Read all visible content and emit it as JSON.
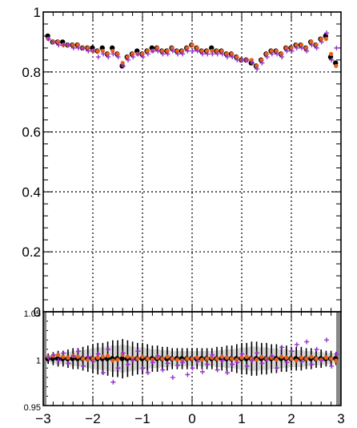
{
  "chart_data": [
    {
      "type": "scatter",
      "title": "",
      "xlabel": "",
      "ylabel": "",
      "xlim": [
        -3,
        3
      ],
      "ylim": [
        0,
        1
      ],
      "grid": true,
      "yticks": [
        0,
        0.2,
        0.4,
        0.6,
        0.8,
        1
      ],
      "ytick_labels": [
        "0",
        "0.2",
        "0.4",
        "0.6",
        "0.8",
        "1"
      ],
      "x": [
        -2.9,
        -2.8,
        -2.7,
        -2.6,
        -2.5,
        -2.4,
        -2.3,
        -2.2,
        -2.1,
        -2.0,
        -1.9,
        -1.8,
        -1.7,
        -1.6,
        -1.5,
        -1.4,
        -1.3,
        -1.2,
        -1.1,
        -1.0,
        -0.9,
        -0.8,
        -0.7,
        -0.6,
        -0.5,
        -0.4,
        -0.3,
        -0.2,
        -0.1,
        0.0,
        0.1,
        0.2,
        0.3,
        0.4,
        0.5,
        0.6,
        0.7,
        0.8,
        0.9,
        1.0,
        1.1,
        1.2,
        1.3,
        1.4,
        1.5,
        1.6,
        1.7,
        1.8,
        1.9,
        2.0,
        2.1,
        2.2,
        2.3,
        2.4,
        2.5,
        2.6,
        2.7,
        2.8,
        2.9
      ],
      "series": [
        {
          "color": "#000000",
          "marker": "circle",
          "values": [
            0.92,
            0.9,
            0.9,
            0.9,
            0.89,
            0.89,
            0.89,
            0.88,
            0.88,
            0.88,
            0.87,
            0.88,
            0.86,
            0.88,
            0.86,
            0.82,
            0.85,
            0.86,
            0.87,
            0.86,
            0.87,
            0.88,
            0.88,
            0.87,
            0.87,
            0.88,
            0.87,
            0.87,
            0.88,
            0.89,
            0.88,
            0.87,
            0.87,
            0.88,
            0.87,
            0.87,
            0.86,
            0.86,
            0.85,
            0.84,
            0.84,
            0.83,
            0.82,
            0.84,
            0.86,
            0.87,
            0.87,
            0.86,
            0.88,
            0.88,
            0.89,
            0.89,
            0.88,
            0.9,
            0.89,
            0.91,
            0.92,
            0.85,
            0.83
          ]
        },
        {
          "color": "#e8601c",
          "marker": "circle",
          "values": [
            0.91,
            0.9,
            0.9,
            0.89,
            0.89,
            0.89,
            0.89,
            0.88,
            0.88,
            0.87,
            0.87,
            0.87,
            0.86,
            0.87,
            0.86,
            0.83,
            0.85,
            0.86,
            0.86,
            0.86,
            0.87,
            0.87,
            0.88,
            0.87,
            0.87,
            0.88,
            0.87,
            0.87,
            0.88,
            0.89,
            0.88,
            0.87,
            0.87,
            0.87,
            0.87,
            0.87,
            0.86,
            0.86,
            0.85,
            0.84,
            0.84,
            0.84,
            0.82,
            0.84,
            0.86,
            0.87,
            0.87,
            0.86,
            0.88,
            0.88,
            0.89,
            0.89,
            0.88,
            0.9,
            0.89,
            0.91,
            0.91,
            0.86,
            0.82
          ]
        },
        {
          "color": "#9933cc",
          "marker": "cross",
          "values": [
            0.91,
            0.9,
            0.89,
            0.89,
            0.89,
            0.88,
            0.88,
            0.88,
            0.87,
            0.87,
            0.85,
            0.86,
            0.85,
            0.86,
            0.85,
            0.82,
            0.84,
            0.85,
            0.86,
            0.85,
            0.86,
            0.87,
            0.87,
            0.86,
            0.86,
            0.87,
            0.86,
            0.86,
            0.87,
            0.87,
            0.87,
            0.86,
            0.86,
            0.86,
            0.86,
            0.86,
            0.85,
            0.85,
            0.84,
            0.84,
            0.84,
            0.83,
            0.81,
            0.83,
            0.85,
            0.86,
            0.86,
            0.85,
            0.87,
            0.87,
            0.88,
            0.88,
            0.87,
            0.89,
            0.88,
            0.9,
            0.93,
            0.84,
            0.88
          ]
        }
      ]
    },
    {
      "type": "scatter",
      "title": "",
      "xlabel": "",
      "ylabel": "",
      "xlim": [
        -3,
        3
      ],
      "ylim": [
        0.95,
        1.05
      ],
      "grid": true,
      "xticks": [
        -3,
        -2,
        -1,
        0,
        1,
        2,
        3
      ],
      "xtick_labels": [
        "−3",
        "−2",
        "−1",
        "0",
        "1",
        "2",
        "3"
      ],
      "ytick_labels": [
        "1.05",
        "1",
        "0.95"
      ],
      "yticks": [
        1.05,
        1,
        0.95
      ],
      "x": [
        -2.9,
        -2.8,
        -2.7,
        -2.6,
        -2.5,
        -2.4,
        -2.3,
        -2.2,
        -2.1,
        -2.0,
        -1.9,
        -1.8,
        -1.7,
        -1.6,
        -1.5,
        -1.4,
        -1.3,
        -1.2,
        -1.1,
        -1.0,
        -0.9,
        -0.8,
        -0.7,
        -0.6,
        -0.5,
        -0.4,
        -0.3,
        -0.2,
        -0.1,
        0.0,
        0.1,
        0.2,
        0.3,
        0.4,
        0.5,
        0.6,
        0.7,
        0.8,
        0.9,
        1.0,
        1.1,
        1.2,
        1.3,
        1.4,
        1.5,
        1.6,
        1.7,
        1.8,
        1.9,
        2.0,
        2.1,
        2.2,
        2.3,
        2.4,
        2.5,
        2.6,
        2.7,
        2.8,
        2.9
      ],
      "series": [
        {
          "color": "#000000",
          "marker": "circle",
          "values": [
            1.0,
            1.0,
            1.0,
            1.0,
            1.0,
            1.0,
            1.0,
            1.0,
            1.0,
            1.0,
            1.0,
            1.0,
            1.0,
            1.0,
            1.0,
            1.0,
            1.0,
            1.0,
            1.0,
            1.0,
            1.0,
            1.0,
            1.0,
            1.0,
            1.0,
            1.0,
            1.0,
            1.0,
            1.0,
            1.0,
            1.0,
            1.0,
            1.0,
            1.0,
            1.0,
            1.0,
            1.0,
            1.0,
            1.0,
            1.0,
            1.0,
            1.0,
            1.0,
            1.0,
            1.0,
            1.0,
            1.0,
            1.0,
            1.0,
            1.0,
            1.0,
            1.0,
            1.0,
            1.0,
            1.0,
            1.0,
            1.0,
            1.0,
            1.0
          ],
          "errors": [
            0.004,
            0.005,
            0.006,
            0.006,
            0.007,
            0.008,
            0.008,
            0.009,
            0.01,
            0.011,
            0.012,
            0.012,
            0.013,
            0.014,
            0.014,
            0.015,
            0.014,
            0.013,
            0.012,
            0.012,
            0.011,
            0.01,
            0.01,
            0.009,
            0.009,
            0.008,
            0.008,
            0.008,
            0.008,
            0.008,
            0.008,
            0.008,
            0.008,
            0.008,
            0.009,
            0.009,
            0.01,
            0.01,
            0.011,
            0.012,
            0.012,
            0.013,
            0.013,
            0.012,
            0.012,
            0.011,
            0.011,
            0.01,
            0.01,
            0.009,
            0.009,
            0.009,
            0.008,
            0.008,
            0.007,
            0.007,
            0.006,
            0.006,
            0.005
          ]
        },
        {
          "color": "#e8601c",
          "marker": "circle",
          "values": [
            1.002,
            1.003,
            1.004,
            1.002,
            1.001,
            1.003,
            1.002,
            1.0,
            0.999,
            1.0,
            1.001,
            1.002,
            1.003,
            0.998,
            0.999,
            1.004,
            1.002,
            1.001,
            1.0,
            1.002,
            1.0,
            0.999,
            1.001,
            1.0,
            1.002,
            1.0,
            0.999,
            0.998,
            1.0,
            1.0,
            1.001,
            0.999,
            1.0,
            1.001,
            1.0,
            1.002,
            1.001,
            1.0,
            0.999,
            1.001,
            1.002,
            1.0,
            0.999,
            1.002,
            1.0,
            1.001,
            0.999,
            1.002,
            1.001,
            1.0,
            0.998,
            1.001,
            1.0,
            1.002,
            1.0,
            0.999,
            1.001,
            1.0,
            0.998
          ]
        },
        {
          "color": "#9933cc",
          "marker": "cross",
          "values": [
            1.001,
            1.004,
            0.998,
            1.006,
            0.995,
            1.003,
            1.008,
            0.992,
            1.002,
            0.997,
            1.005,
            0.985,
            1.01,
            0.975,
            0.99,
            1.006,
            0.994,
            0.998,
            1.008,
            0.99,
            0.985,
            0.996,
            1.003,
            0.988,
            0.995,
            0.98,
            0.993,
            0.996,
            0.983,
            0.99,
            0.997,
            0.986,
            0.994,
            1.004,
            0.988,
            0.998,
            0.985,
            0.994,
            0.996,
            1.005,
            0.992,
            0.998,
            1.006,
            0.995,
            0.999,
            1.003,
            0.99,
            1.012,
            0.996,
            1.008,
            1.015,
            0.997,
            1.018,
            0.994,
            1.01,
            0.998,
            1.02,
            0.992,
            1.005
          ]
        }
      ]
    }
  ]
}
